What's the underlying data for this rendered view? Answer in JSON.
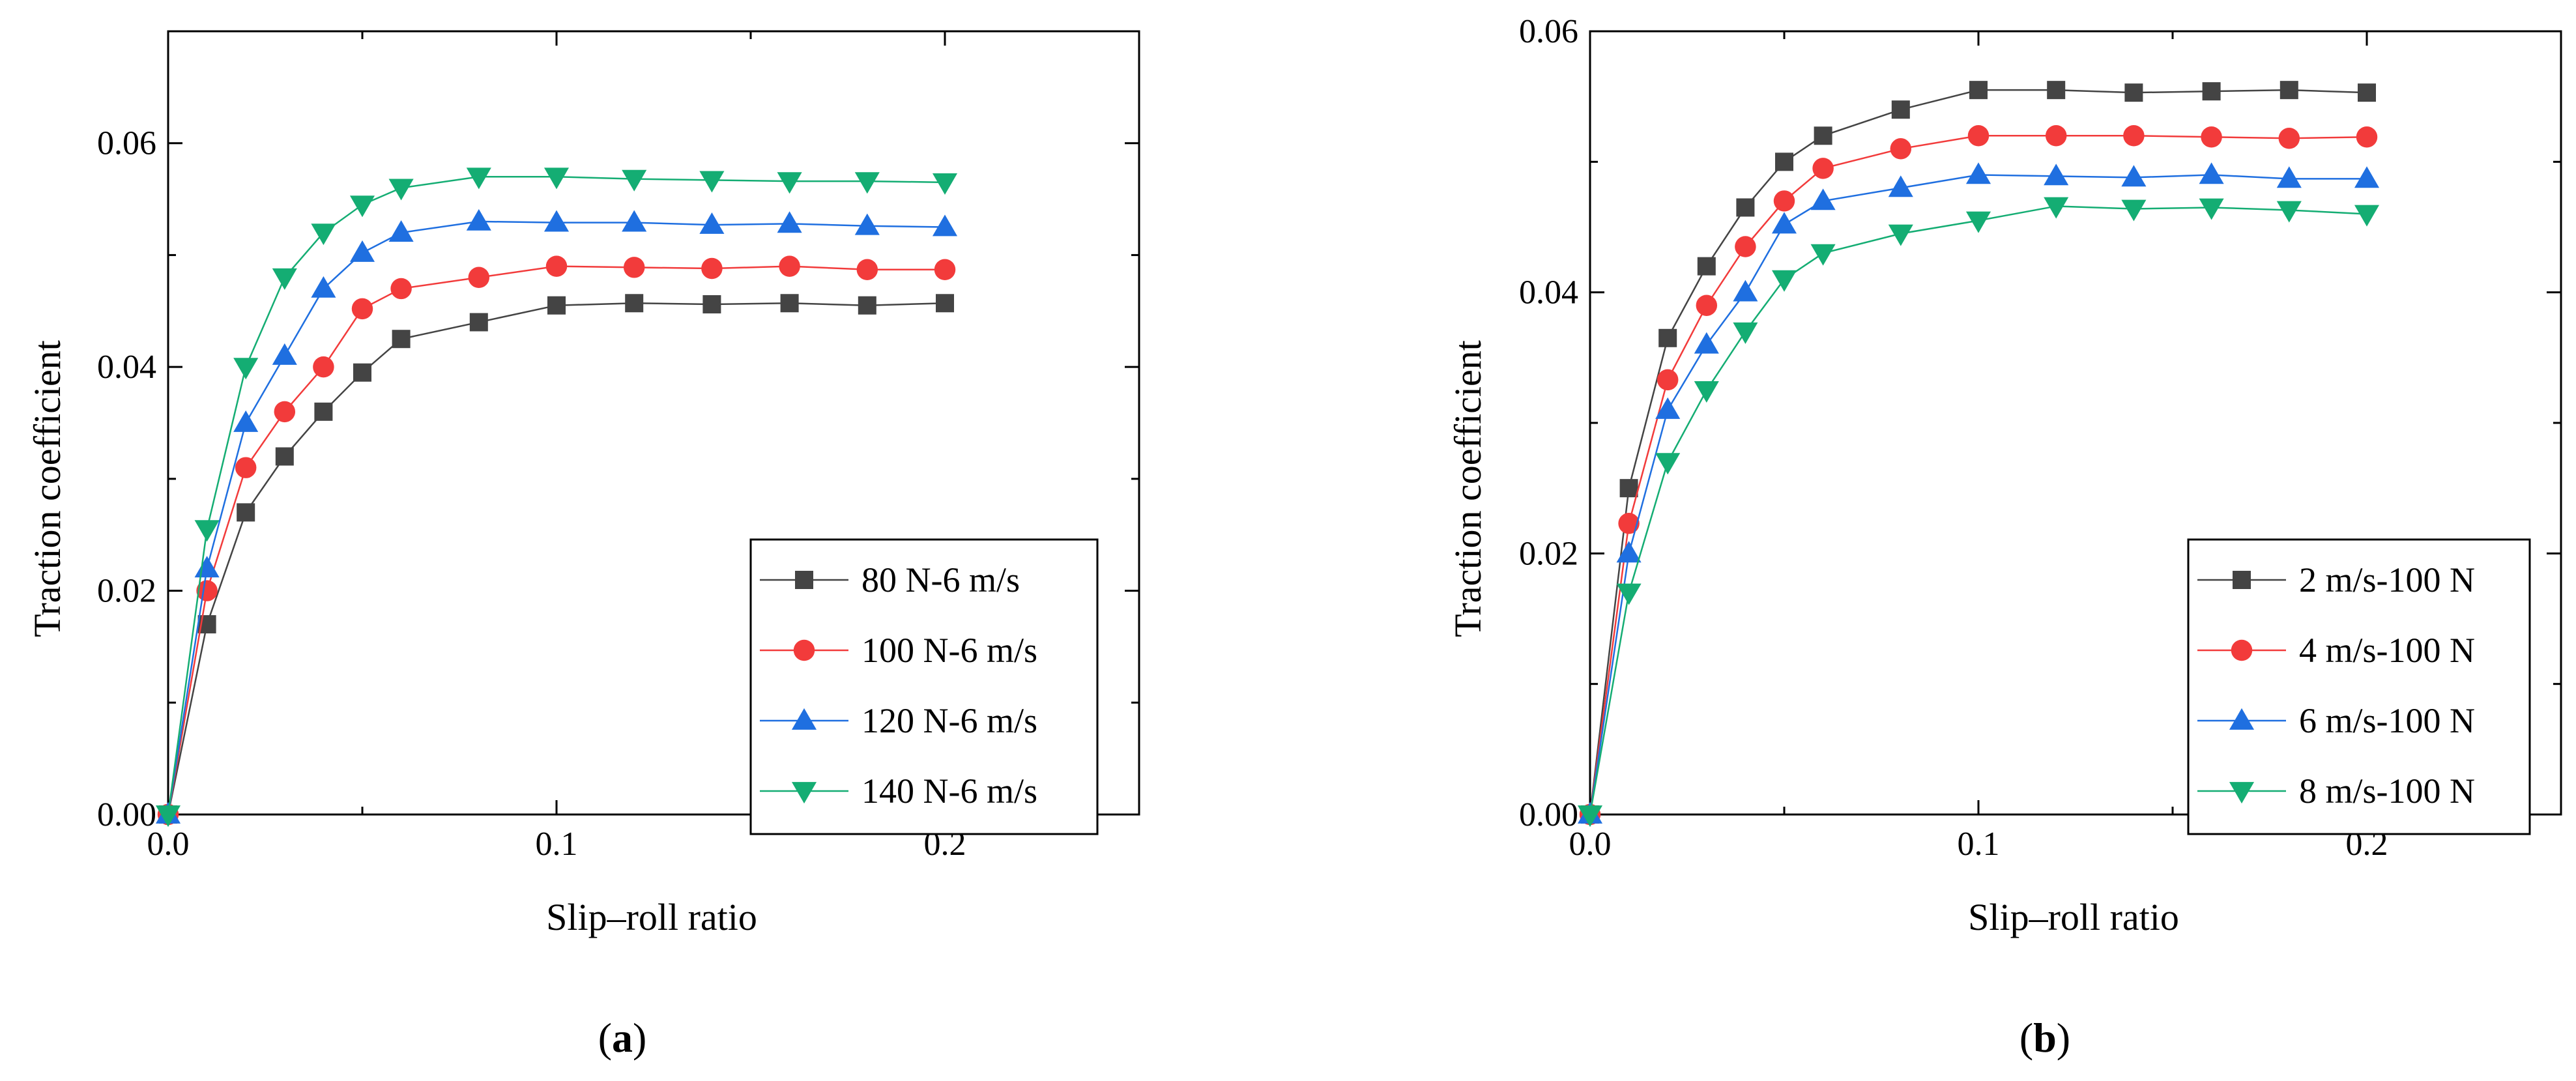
{
  "colors": {
    "black_series": "#444444",
    "red_series": "#f23b3b",
    "blue_series": "#1f6fe0",
    "green_series": "#14ad73",
    "axis": "#000000"
  },
  "chart_data": [
    {
      "type": "line",
      "panel_label": "a",
      "xlabel": "Slip–roll ratio",
      "ylabel": "Traction coefficient",
      "xlim": [
        0,
        0.25
      ],
      "ylim": [
        0,
        0.07
      ],
      "xticks": [
        0.0,
        0.1,
        0.2
      ],
      "xtick_labels": [
        "0.0",
        "0.1",
        "0.2"
      ],
      "yticks": [
        0.0,
        0.02,
        0.04,
        0.06
      ],
      "ytick_labels": [
        "0.00",
        "0.02",
        "0.04",
        "0.06"
      ],
      "legend_position": "bottom-right",
      "x": [
        0,
        0.01,
        0.02,
        0.03,
        0.04,
        0.05,
        0.06,
        0.08,
        0.1,
        0.12,
        0.14,
        0.16,
        0.18,
        0.2
      ],
      "series": [
        {
          "name": "80 N-6 m/s",
          "marker": "square",
          "color": "#444444",
          "values": [
            0,
            0.017,
            0.027,
            0.032,
            0.036,
            0.0395,
            0.0425,
            0.044,
            0.0455,
            0.0457,
            0.0456,
            0.0457,
            0.0455,
            0.0457
          ]
        },
        {
          "name": "100 N-6 m/s",
          "marker": "circle",
          "color": "#f23b3b",
          "values": [
            0,
            0.02,
            0.031,
            0.036,
            0.04,
            0.0452,
            0.047,
            0.048,
            0.049,
            0.0489,
            0.0488,
            0.049,
            0.0487,
            0.0487
          ]
        },
        {
          "name": "120 N-6 m/s",
          "marker": "triangle-up",
          "color": "#1f6fe0",
          "values": [
            0,
            0.022,
            0.035,
            0.041,
            0.047,
            0.0502,
            0.052,
            0.053,
            0.0529,
            0.0529,
            0.0527,
            0.0528,
            0.0526,
            0.0525
          ]
        },
        {
          "name": "140 N-6 m/s",
          "marker": "triangle-down",
          "color": "#14ad73",
          "values": [
            0,
            0.0255,
            0.04,
            0.048,
            0.052,
            0.0545,
            0.056,
            0.057,
            0.057,
            0.0568,
            0.0567,
            0.0566,
            0.0566,
            0.0565
          ]
        }
      ]
    },
    {
      "type": "line",
      "panel_label": "b",
      "xlabel": "Slip–roll ratio",
      "ylabel": "Traction coefficient",
      "xlim": [
        0,
        0.25
      ],
      "ylim": [
        0,
        0.06
      ],
      "xticks": [
        0.0,
        0.1,
        0.2
      ],
      "xtick_labels": [
        "0.0",
        "0.1",
        "0.2"
      ],
      "yticks": [
        0.0,
        0.02,
        0.04,
        0.06
      ],
      "ytick_labels": [
        "0.00",
        "0.02",
        "0.04",
        "0.06"
      ],
      "legend_position": "bottom-right",
      "x": [
        0,
        0.01,
        0.02,
        0.03,
        0.04,
        0.05,
        0.06,
        0.08,
        0.1,
        0.12,
        0.14,
        0.16,
        0.18,
        0.2
      ],
      "series": [
        {
          "name": "2 m/s-100 N",
          "marker": "square",
          "color": "#444444",
          "values": [
            0,
            0.025,
            0.0365,
            0.042,
            0.0465,
            0.05,
            0.052,
            0.054,
            0.0555,
            0.0555,
            0.0553,
            0.0554,
            0.0555,
            0.0553
          ]
        },
        {
          "name": "4 m/s-100 N",
          "marker": "circle",
          "color": "#f23b3b",
          "values": [
            0,
            0.0223,
            0.0333,
            0.039,
            0.0435,
            0.047,
            0.0495,
            0.051,
            0.052,
            0.052,
            0.052,
            0.0519,
            0.0518,
            0.0519
          ]
        },
        {
          "name": "6 m/s-100 N",
          "marker": "triangle-up",
          "color": "#1f6fe0",
          "values": [
            0,
            0.02,
            0.031,
            0.036,
            0.04,
            0.0452,
            0.047,
            0.048,
            0.049,
            0.0489,
            0.0488,
            0.049,
            0.0487,
            0.0487
          ]
        },
        {
          "name": "8 m/s-100 N",
          "marker": "triangle-down",
          "color": "#14ad73",
          "values": [
            0,
            0.017,
            0.027,
            0.0325,
            0.037,
            0.041,
            0.043,
            0.0445,
            0.0455,
            0.0466,
            0.0464,
            0.0465,
            0.0463,
            0.046
          ]
        }
      ]
    }
  ]
}
